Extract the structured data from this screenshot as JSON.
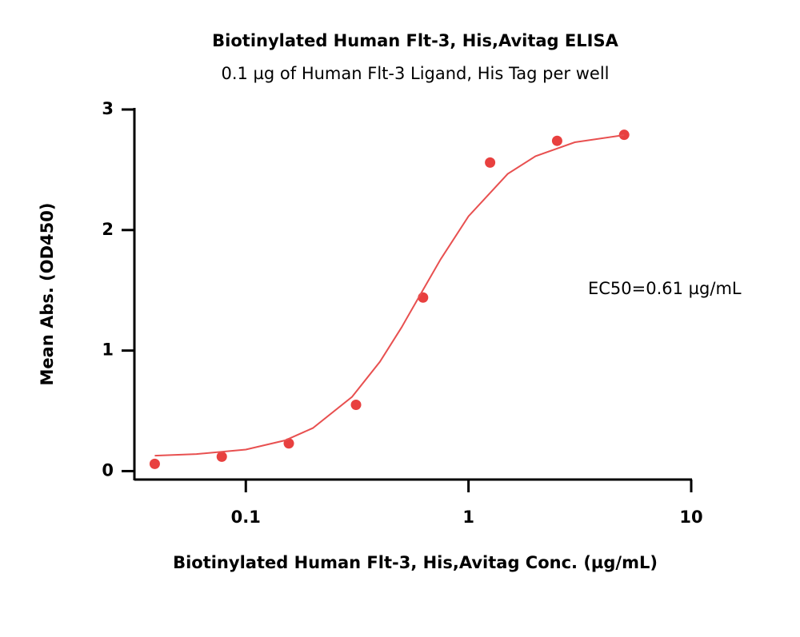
{
  "chart_data": {
    "type": "scatter",
    "title": "Biotinylated Human Flt-3, His,Avitag ELISA",
    "subtitle": "0.1 µg of Human Flt-3 Ligand, His Tag per well",
    "x_label": "Biotinylated Human Flt-3, His,Avitag Conc. (µg/mL)",
    "y_label": "Mean Abs. (OD450)",
    "annotation": "EC50=0.61 µg/mL",
    "xscale": "log",
    "xlim": [
      0.0316,
      10
    ],
    "xticks": [
      0.1,
      1,
      10
    ],
    "ylim": [
      -0.07,
      3
    ],
    "yticks": [
      0,
      1,
      2,
      3
    ],
    "series": [
      {
        "mode": "markers",
        "color": "#e8403f",
        "x": [
          0.039,
          0.078,
          0.156,
          0.3125,
          0.625,
          1.25,
          2.5,
          5
        ],
        "values": [
          0.06,
          0.12,
          0.23,
          0.55,
          1.44,
          2.56,
          2.74,
          2.79
        ]
      },
      {
        "mode": "line",
        "color": "#e85050",
        "x": [
          0.039,
          0.06,
          0.1,
          0.15,
          0.2,
          0.3,
          0.4,
          0.5,
          0.61,
          0.75,
          1,
          1.5,
          2,
          3,
          5
        ],
        "values": [
          0.128,
          0.141,
          0.179,
          0.255,
          0.357,
          0.616,
          0.907,
          1.191,
          1.47,
          1.758,
          2.114,
          2.466,
          2.613,
          2.728,
          2.788
        ]
      }
    ]
  }
}
